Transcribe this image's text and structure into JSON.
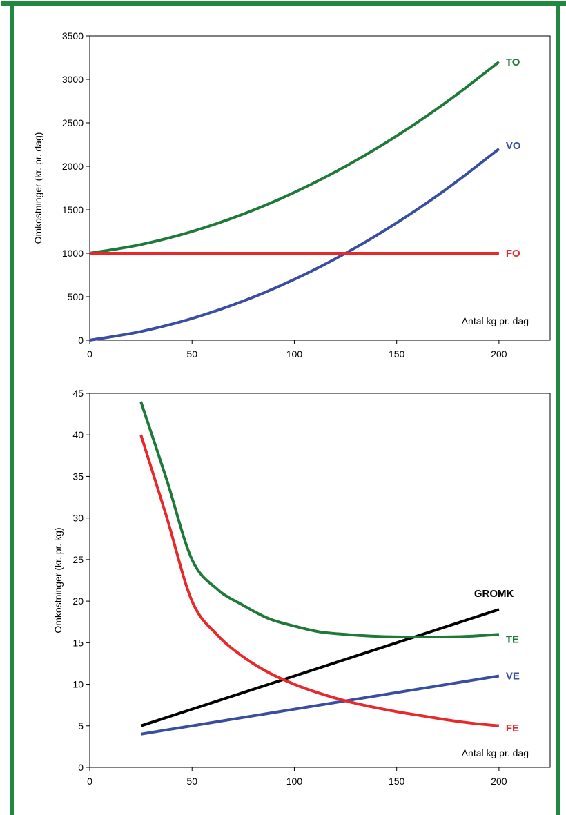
{
  "chart_data": [
    {
      "type": "line",
      "ylabel": "Omkostninger (kr. pr. dag)",
      "xlabel": "Antal kg pr. dag",
      "xlim": [
        0,
        225
      ],
      "ylim": [
        0,
        3500
      ],
      "x_ticks": [
        "0",
        "50",
        "100",
        "150",
        "200"
      ],
      "y_ticks": [
        "0",
        "500",
        "1000",
        "1500",
        "2000",
        "2500",
        "3000",
        "3500"
      ],
      "grid": false,
      "legend": "inline labels at line ends",
      "series": [
        {
          "name": "TO",
          "color": "#1f7a3a",
          "x": [
            0,
            25,
            50,
            75,
            100,
            125,
            150,
            175,
            200
          ],
          "y": [
            1000,
            1100,
            1250,
            1450,
            1700,
            2000,
            2350,
            2750,
            3200
          ]
        },
        {
          "name": "VO",
          "color": "#3a4ea0",
          "x": [
            0,
            25,
            50,
            75,
            100,
            125,
            150,
            175,
            200
          ],
          "y": [
            0,
            100,
            250,
            450,
            700,
            1000,
            1350,
            1750,
            2200
          ]
        },
        {
          "name": "FO",
          "color": "#e8282a",
          "x": [
            0,
            200
          ],
          "y": [
            1000,
            1000
          ]
        }
      ]
    },
    {
      "type": "line",
      "ylabel": "Omkostninger (kr. pr. kg)",
      "xlabel": "Antal kg pr. dag",
      "xlim": [
        0,
        225
      ],
      "ylim": [
        0,
        45
      ],
      "x_ticks": [
        "0",
        "50",
        "100",
        "150",
        "200"
      ],
      "y_ticks": [
        "0",
        "5",
        "10",
        "15",
        "20",
        "25",
        "30",
        "35",
        "40",
        "45"
      ],
      "grid": false,
      "legend": "inline labels at line ends",
      "series": [
        {
          "name": "GROMK",
          "color": "#000000",
          "x": [
            25,
            200
          ],
          "y": [
            5,
            19
          ]
        },
        {
          "name": "TE",
          "color": "#1f7a3a",
          "x": [
            25,
            37.5,
            50,
            62.5,
            75,
            87.5,
            100,
            112.5,
            125,
            137.5,
            150,
            162.5,
            175,
            187.5,
            200
          ],
          "y": [
            44,
            34.7,
            25,
            21.4,
            19.5,
            17.9,
            17,
            16.3,
            16,
            15.8,
            15.7,
            15.7,
            15.7,
            15.8,
            16
          ]
        },
        {
          "name": "VE",
          "color": "#3a4ea0",
          "x": [
            25,
            200
          ],
          "y": [
            4,
            11
          ]
        },
        {
          "name": "FE",
          "color": "#e8282a",
          "x": [
            25,
            37.5,
            50,
            62.5,
            75,
            87.5,
            100,
            112.5,
            125,
            137.5,
            150,
            162.5,
            175,
            187.5,
            200
          ],
          "y": [
            40,
            30.2,
            20,
            15.9,
            13.3,
            11.4,
            10,
            8.9,
            8,
            7.3,
            6.7,
            6.2,
            5.7,
            5.3,
            5
          ]
        }
      ]
    }
  ]
}
